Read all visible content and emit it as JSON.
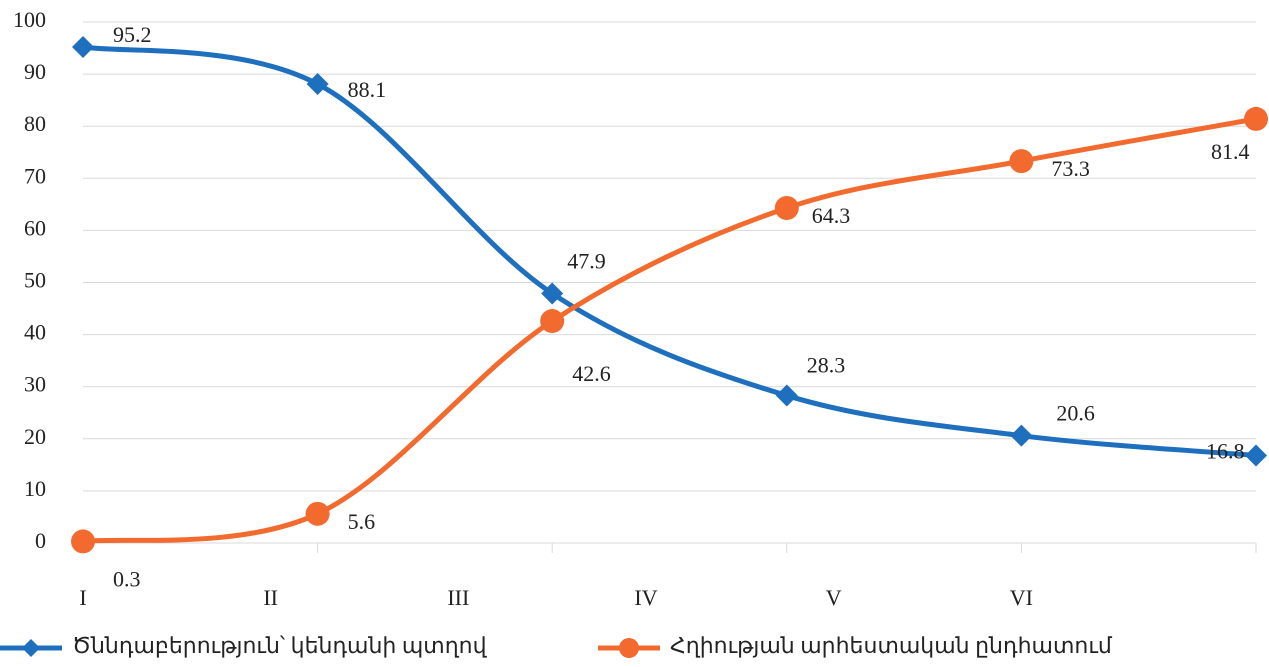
{
  "chart_data": {
    "type": "line",
    "categories": [
      "I",
      "II",
      "III",
      "IV",
      "V",
      "VI"
    ],
    "series": [
      {
        "name": "Ծննդաբերություն՝ կենդանի պտղով",
        "color": "#1f6fbf",
        "marker": "diamond",
        "values": [
          95.2,
          88.1,
          47.9,
          28.3,
          20.6,
          16.8
        ]
      },
      {
        "name": "Հղիության արհեստական ընդհատում",
        "color": "#f26a2e",
        "marker": "circle",
        "values": [
          0.3,
          5.6,
          42.6,
          64.3,
          73.3,
          81.4
        ]
      }
    ],
    "ylim": [
      0,
      100
    ],
    "yticks": [
      0,
      10,
      20,
      30,
      40,
      50,
      60,
      70,
      80,
      90,
      100
    ],
    "grid": true,
    "smooth": true,
    "legend": "bottom"
  }
}
